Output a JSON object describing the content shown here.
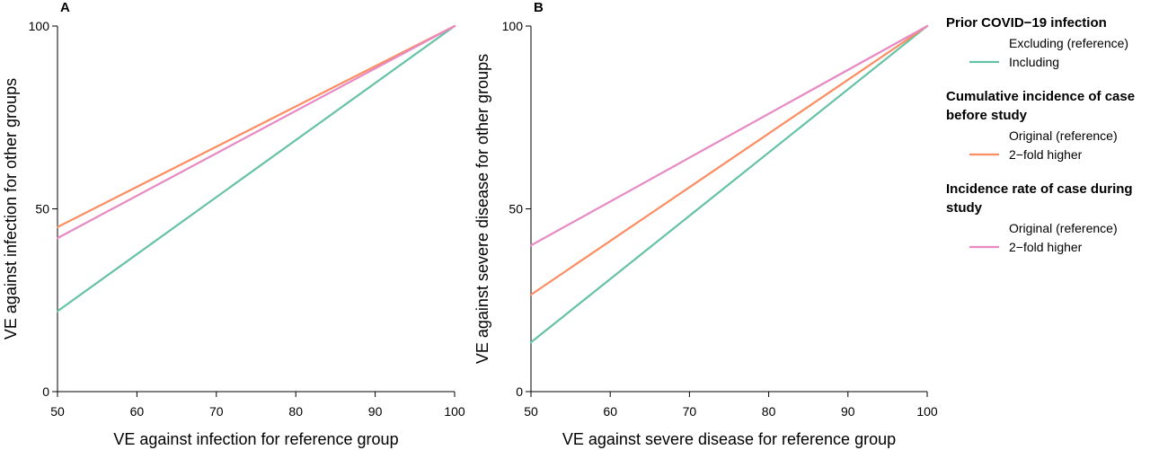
{
  "chart_data": [
    {
      "type": "line",
      "panel_label": "A",
      "xlabel": "VE against infection for reference group",
      "ylabel": "VE against infection for other groups",
      "xlim": [
        50,
        100
      ],
      "ylim": [
        0,
        100
      ],
      "xticks": [
        50,
        60,
        70,
        80,
        90,
        100
      ],
      "yticks": [
        0,
        50,
        100
      ],
      "grid": false,
      "series": [
        {
          "key": "prior-infection-including",
          "color": "#66c2a5",
          "x": [
            50,
            100
          ],
          "y": [
            22,
            100
          ]
        },
        {
          "key": "cumulative-incidence-2fold",
          "color": "#fc8d62",
          "x": [
            50,
            100
          ],
          "y": [
            45,
            100
          ]
        },
        {
          "key": "incidence-rate-2fold",
          "color": "#e78ac3",
          "x": [
            50,
            100
          ],
          "y": [
            42,
            100
          ]
        }
      ]
    },
    {
      "type": "line",
      "panel_label": "B",
      "xlabel": "VE against severe disease for reference group",
      "ylabel": "VE against severe disease for other groups",
      "xlim": [
        50,
        100
      ],
      "ylim": [
        0,
        100
      ],
      "xticks": [
        50,
        60,
        70,
        80,
        90,
        100
      ],
      "yticks": [
        0,
        50,
        100
      ],
      "grid": false,
      "series": [
        {
          "key": "prior-infection-including",
          "color": "#66c2a5",
          "x": [
            50,
            100
          ],
          "y": [
            13.5,
            100
          ]
        },
        {
          "key": "cumulative-incidence-2fold",
          "color": "#fc8d62",
          "x": [
            50,
            100
          ],
          "y": [
            26.5,
            100
          ]
        },
        {
          "key": "incidence-rate-2fold",
          "color": "#e78ac3",
          "x": [
            50,
            100
          ],
          "y": [
            40,
            100
          ]
        }
      ]
    }
  ],
  "legend": {
    "placement": "right",
    "groups": [
      {
        "heading_lines": [
          "Prior COVID−19 infection"
        ],
        "entries": [
          {
            "label": "Excluding (reference)",
            "color": null
          },
          {
            "label": "Including",
            "color": "#66c2a5"
          }
        ]
      },
      {
        "heading_lines": [
          "Cumulative incidence of case",
          "before study"
        ],
        "entries": [
          {
            "label": "Original (reference)",
            "color": null
          },
          {
            "label": "2−fold higher",
            "color": "#fc8d62"
          }
        ]
      },
      {
        "heading_lines": [
          "Incidence rate of case during",
          "study"
        ],
        "entries": [
          {
            "label": "Original (reference)",
            "color": null
          },
          {
            "label": "2−fold higher",
            "color": "#e78ac3"
          }
        ]
      }
    ]
  }
}
